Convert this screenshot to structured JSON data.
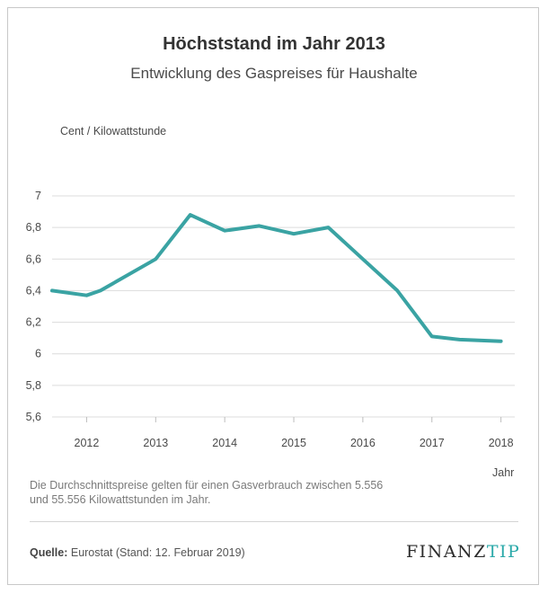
{
  "header": {
    "title": "Höchststand im Jahr 2013",
    "subtitle": "Entwicklung des Gaspreises für Haushalte"
  },
  "chart_data": {
    "type": "line",
    "title": "Höchststand im Jahr 2013",
    "subtitle": "Entwicklung des Gaspreises für Haushalte",
    "ylabel": "Cent / Kilowattstunde",
    "xlabel": "Jahr",
    "ylim": [
      5.6,
      7.0
    ],
    "yticks": [
      5.6,
      5.8,
      6.0,
      6.2,
      6.4,
      6.6,
      6.8,
      7.0
    ],
    "ytick_labels": [
      "5,6",
      "5,8",
      "6",
      "6,2",
      "6,4",
      "6,6",
      "6,8",
      "7"
    ],
    "xlim": [
      2011.5,
      2018.2
    ],
    "xticks": [
      2012,
      2013,
      2014,
      2015,
      2016,
      2017,
      2018
    ],
    "xtick_labels": [
      "2012",
      "2013",
      "2014",
      "2015",
      "2016",
      "2017",
      "2018"
    ],
    "grid": true,
    "series": [
      {
        "name": "Gaspreis",
        "color": "#3aa3a3",
        "x": [
          2011.5,
          2012.0,
          2012.2,
          2013.0,
          2013.5,
          2014.0,
          2014.5,
          2015.0,
          2015.5,
          2016.0,
          2016.5,
          2017.0,
          2017.4,
          2018.0
        ],
        "y": [
          6.4,
          6.37,
          6.4,
          6.6,
          6.88,
          6.78,
          6.81,
          6.76,
          6.8,
          6.6,
          6.4,
          6.11,
          6.09,
          6.08
        ]
      }
    ]
  },
  "footer": {
    "note_line1": "Die Durchschnittspreise gelten für einen Gasverbrauch zwischen 5.556",
    "note_line2": "und 55.556 Kilowattstunden im Jahr.",
    "source_label": "Quelle:",
    "source_text": "Eurostat (Stand: 12. Februar 2019)",
    "logo_part1": "FINANZ",
    "logo_part2": "TIP"
  }
}
